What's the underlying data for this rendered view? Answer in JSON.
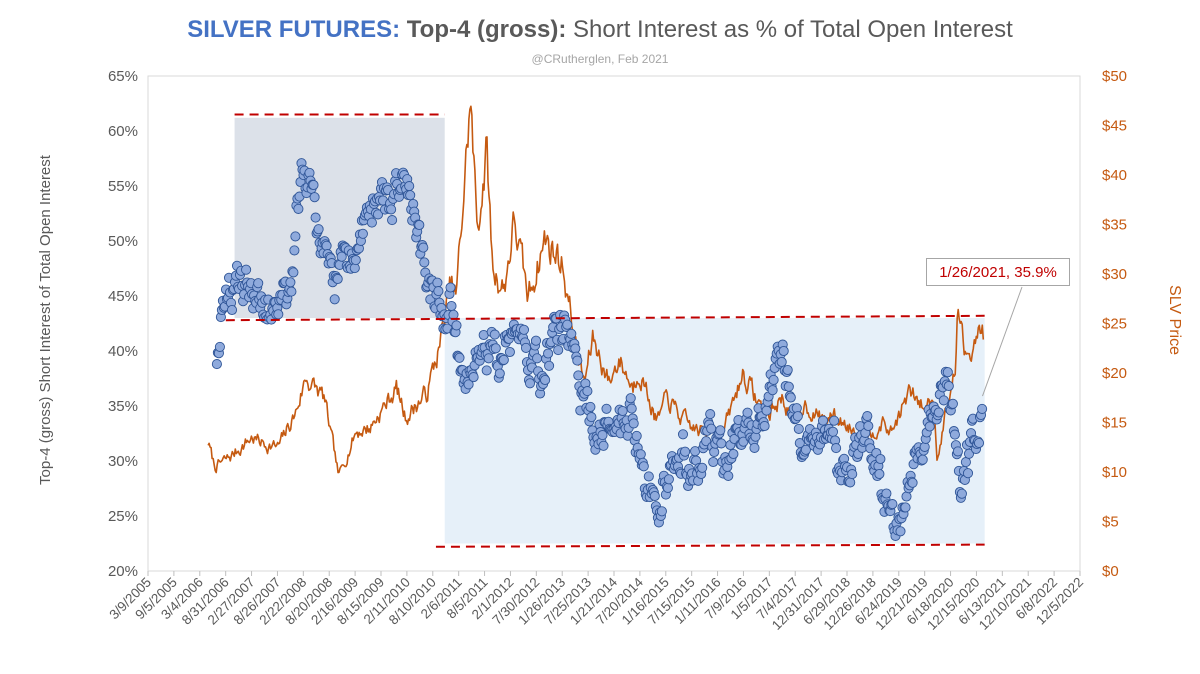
{
  "header": {
    "title_part1": "SILVER FUTURES:",
    "title_part2": " Top-4 (gross):",
    "title_part3": " Short Interest as % of Total Open Interest",
    "subtitle": "@CRutherglen, Feb 2021"
  },
  "colors": {
    "title_accent": "#4472C4",
    "scatter_fill": "#8FAADC",
    "scatter_stroke": "#2F5597",
    "price_line": "#C55A11",
    "dashed_lines": "#C00000",
    "shade_left": "#D6DCE5",
    "shade_right": "#DEEBF7"
  },
  "chart_data": {
    "type": "scatter",
    "title": "SILVER FUTURES: Top-4 (gross): Short Interest as % of Total Open Interest",
    "subtitle": "@CRutherglen, Feb 2021",
    "ylabel": "Top-4 (gross) Short Interest of Total Open Interest",
    "y2label": "SLV Price",
    "ylim": [
      0.2,
      0.65
    ],
    "y2lim": [
      0,
      50
    ],
    "yticks": [
      "20%",
      "25%",
      "30%",
      "35%",
      "40%",
      "45%",
      "50%",
      "55%",
      "60%",
      "65%"
    ],
    "y2ticks": [
      "$0",
      "$5",
      "$10",
      "$15",
      "$20",
      "$25",
      "$30",
      "$35",
      "$40",
      "$45",
      "$50"
    ],
    "xlim": [
      "2005-03-09",
      "2022-12-05"
    ],
    "xticks": [
      "3/9/2005",
      "9/5/2005",
      "3/4/2006",
      "8/31/2006",
      "2/27/2007",
      "8/26/2007",
      "2/22/2008",
      "8/20/2008",
      "2/16/2009",
      "8/15/2009",
      "2/11/2010",
      "8/10/2010",
      "2/6/2011",
      "8/5/2011",
      "2/1/2012",
      "7/30/2012",
      "1/26/2013",
      "7/25/2013",
      "1/21/2014",
      "7/20/2014",
      "1/16/2015",
      "7/15/2015",
      "1/11/2016",
      "7/9/2016",
      "1/5/2017",
      "7/4/2017",
      "12/31/2017",
      "6/29/2018",
      "12/26/2018",
      "6/24/2019",
      "12/21/2019",
      "6/18/2020",
      "12/15/2020",
      "6/13/2021",
      "12/10/2021",
      "6/8/2022",
      "12/5/2022"
    ],
    "grid": "none",
    "annotation": {
      "text": "1/26/2021, 35.9%",
      "x": "2021-01-26",
      "y": 0.359
    },
    "shaded_regions": [
      {
        "x0": "2006-11-01",
        "x1": "2010-11-01",
        "y0": 0.43,
        "y1": 0.612
      },
      {
        "x0": "2010-11-01",
        "x1": "2021-02-10",
        "y0": 0.225,
        "y1": 0.43
      }
    ],
    "reference_lines": [
      {
        "x0": "2006-11-01",
        "x1": "2010-11-01",
        "y": 0.615
      },
      {
        "x0": "2006-09-01",
        "x1": "2021-02-10",
        "y0": 0.428,
        "y1": 0.432
      },
      {
        "x0": "2010-09-01",
        "x1": "2021-02-10",
        "y0": 0.222,
        "y1": 0.224
      }
    ],
    "series": [
      {
        "kind": "scatter",
        "axis": "left",
        "anchors": [
          [
            "2006-07-01",
            0.4
          ],
          [
            "2006-09-01",
            0.44
          ],
          [
            "2006-12-01",
            0.46
          ],
          [
            "2007-03-01",
            0.46
          ],
          [
            "2007-06-01",
            0.44
          ],
          [
            "2007-09-01",
            0.44
          ],
          [
            "2007-12-01",
            0.45
          ],
          [
            "2008-02-01",
            0.55
          ],
          [
            "2008-04-01",
            0.57
          ],
          [
            "2008-07-01",
            0.49
          ],
          [
            "2008-10-01",
            0.46
          ],
          [
            "2009-01-01",
            0.48
          ],
          [
            "2009-04-01",
            0.5
          ],
          [
            "2009-07-01",
            0.53
          ],
          [
            "2009-10-01",
            0.54
          ],
          [
            "2010-01-01",
            0.56
          ],
          [
            "2010-04-01",
            0.52
          ],
          [
            "2010-07-01",
            0.47
          ],
          [
            "2010-10-01",
            0.44
          ],
          [
            "2011-01-01",
            0.43
          ],
          [
            "2011-03-01",
            0.36
          ],
          [
            "2011-06-01",
            0.38
          ],
          [
            "2011-09-01",
            0.4
          ],
          [
            "2011-12-01",
            0.39
          ],
          [
            "2012-03-01",
            0.42
          ],
          [
            "2012-06-01",
            0.4
          ],
          [
            "2012-09-01",
            0.37
          ],
          [
            "2012-12-01",
            0.41
          ],
          [
            "2013-03-01",
            0.42
          ],
          [
            "2013-06-01",
            0.36
          ],
          [
            "2013-09-01",
            0.33
          ],
          [
            "2013-12-01",
            0.34
          ],
          [
            "2014-03-01",
            0.35
          ],
          [
            "2014-06-01",
            0.33
          ],
          [
            "2014-09-01",
            0.29
          ],
          [
            "2014-12-01",
            0.25
          ],
          [
            "2015-03-01",
            0.3
          ],
          [
            "2015-06-01",
            0.31
          ],
          [
            "2015-09-01",
            0.29
          ],
          [
            "2015-12-01",
            0.32
          ],
          [
            "2016-03-01",
            0.3
          ],
          [
            "2016-06-01",
            0.32
          ],
          [
            "2016-09-01",
            0.33
          ],
          [
            "2016-12-01",
            0.35
          ],
          [
            "2017-03-01",
            0.38
          ],
          [
            "2017-06-01",
            0.37
          ],
          [
            "2017-09-01",
            0.31
          ],
          [
            "2017-12-01",
            0.33
          ],
          [
            "2018-03-01",
            0.32
          ],
          [
            "2018-06-01",
            0.29
          ],
          [
            "2018-09-01",
            0.3
          ],
          [
            "2018-12-01",
            0.32
          ],
          [
            "2019-03-01",
            0.27
          ],
          [
            "2019-06-01",
            0.23
          ],
          [
            "2019-09-01",
            0.28
          ],
          [
            "2019-12-01",
            0.31
          ],
          [
            "2020-03-01",
            0.34
          ],
          [
            "2020-06-01",
            0.36
          ],
          [
            "2020-09-01",
            0.28
          ],
          [
            "2020-12-01",
            0.32
          ],
          [
            "2021-01-26",
            0.359
          ]
        ]
      },
      {
        "kind": "line",
        "axis": "right",
        "name": "SLV Price",
        "anchors": [
          [
            "2006-05-01",
            13.0
          ],
          [
            "2006-06-15",
            10.5
          ],
          [
            "2006-10-01",
            11.5
          ],
          [
            "2007-03-01",
            13.5
          ],
          [
            "2007-06-01",
            12.8
          ],
          [
            "2007-09-01",
            12.5
          ],
          [
            "2008-01-01",
            16.0
          ],
          [
            "2008-03-10",
            19.5
          ],
          [
            "2008-07-15",
            17.5
          ],
          [
            "2008-10-25",
            9.5
          ],
          [
            "2009-02-20",
            14.0
          ],
          [
            "2009-06-01",
            14.5
          ],
          [
            "2009-09-01",
            16.5
          ],
          [
            "2009-12-01",
            18.5
          ],
          [
            "2010-02-01",
            15.5
          ],
          [
            "2010-07-01",
            18.0
          ],
          [
            "2010-10-01",
            23.0
          ],
          [
            "2010-12-15",
            29.0
          ],
          [
            "2011-01-20",
            27.5
          ],
          [
            "2011-04-28",
            47.5
          ],
          [
            "2011-06-15",
            34.5
          ],
          [
            "2011-08-20",
            42.5
          ],
          [
            "2011-09-30",
            30.5
          ],
          [
            "2011-12-20",
            28.5
          ],
          [
            "2012-02-28",
            35.5
          ],
          [
            "2012-06-01",
            27.5
          ],
          [
            "2012-09-25",
            33.5
          ],
          [
            "2012-12-15",
            32.0
          ],
          [
            "2013-02-01",
            31.0
          ],
          [
            "2013-04-20",
            23.5
          ],
          [
            "2013-06-28",
            19.0
          ],
          [
            "2013-08-28",
            23.5
          ],
          [
            "2013-12-20",
            19.0
          ],
          [
            "2014-02-25",
            21.5
          ],
          [
            "2014-06-01",
            18.5
          ],
          [
            "2014-07-15",
            20.5
          ],
          [
            "2014-11-15",
            15.0
          ],
          [
            "2015-01-25",
            17.5
          ],
          [
            "2015-05-01",
            15.5
          ],
          [
            "2015-07-15",
            14.5
          ],
          [
            "2015-12-15",
            13.5
          ],
          [
            "2016-03-01",
            14.5
          ],
          [
            "2016-07-05",
            20.0
          ],
          [
            "2016-12-15",
            15.5
          ],
          [
            "2017-04-01",
            17.5
          ],
          [
            "2017-07-15",
            15.0
          ],
          [
            "2017-09-01",
            17.0
          ],
          [
            "2017-12-15",
            15.5
          ],
          [
            "2018-04-01",
            15.5
          ],
          [
            "2018-11-15",
            13.5
          ],
          [
            "2019-02-20",
            15.0
          ],
          [
            "2019-05-01",
            14.0
          ],
          [
            "2019-09-05",
            18.0
          ],
          [
            "2019-12-15",
            16.5
          ],
          [
            "2020-02-20",
            17.5
          ],
          [
            "2020-03-18",
            11.5
          ],
          [
            "2020-05-15",
            16.0
          ],
          [
            "2020-07-20",
            20.0
          ],
          [
            "2020-08-07",
            27.0
          ],
          [
            "2020-09-25",
            21.5
          ],
          [
            "2020-11-15",
            23.0
          ],
          [
            "2021-01-10",
            24.5
          ],
          [
            "2021-02-01",
            24.0
          ]
        ]
      }
    ]
  }
}
